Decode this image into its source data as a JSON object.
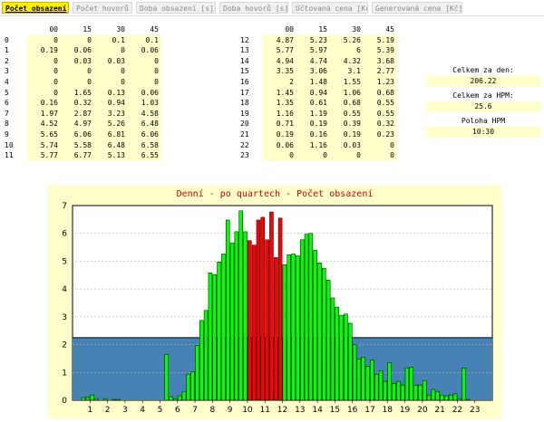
{
  "tabs": [
    {
      "label": "Počet obsazení",
      "active": true
    },
    {
      "label": "Počet hovorů",
      "active": false
    },
    {
      "label": "Doba obsazení [s]",
      "active": false
    },
    {
      "label": "Doba hovorů [s]",
      "active": false
    },
    {
      "label": "Účtovaná cena [Kč]",
      "active": false
    },
    {
      "label": "Generovaná cena [Kč]",
      "active": false
    }
  ],
  "table": {
    "minutes": [
      "00",
      "15",
      "30",
      "45"
    ],
    "left": [
      {
        "hour": "0",
        "v": [
          "0",
          "0",
          "0.1",
          "0.1"
        ]
      },
      {
        "hour": "1",
        "v": [
          "0.19",
          "0.06",
          "0",
          "0.06"
        ]
      },
      {
        "hour": "2",
        "v": [
          "0",
          "0.03",
          "0.03",
          "0"
        ]
      },
      {
        "hour": "3",
        "v": [
          "0",
          "0",
          "0",
          "0"
        ]
      },
      {
        "hour": "4",
        "v": [
          "0",
          "0",
          "0",
          "0"
        ]
      },
      {
        "hour": "5",
        "v": [
          "0",
          "1.65",
          "0.13",
          "0.06"
        ]
      },
      {
        "hour": "6",
        "v": [
          "0.16",
          "0.32",
          "0.94",
          "1.03"
        ]
      },
      {
        "hour": "7",
        "v": [
          "1.97",
          "2.87",
          "3.23",
          "4.58"
        ]
      },
      {
        "hour": "8",
        "v": [
          "4.52",
          "4.97",
          "5.26",
          "6.48"
        ]
      },
      {
        "hour": "9",
        "v": [
          "5.65",
          "6.06",
          "6.81",
          "6.06"
        ]
      },
      {
        "hour": "10",
        "v": [
          "5.74",
          "5.58",
          "6.48",
          "6.58"
        ]
      },
      {
        "hour": "11",
        "v": [
          "5.77",
          "6.77",
          "5.13",
          "6.55"
        ]
      }
    ],
    "right": [
      {
        "hour": "12",
        "v": [
          "4.87",
          "5.23",
          "5.26",
          "5.19"
        ]
      },
      {
        "hour": "13",
        "v": [
          "5.77",
          "5.97",
          "6",
          "5.39"
        ]
      },
      {
        "hour": "14",
        "v": [
          "4.94",
          "4.74",
          "4.32",
          "3.68"
        ]
      },
      {
        "hour": "15",
        "v": [
          "3.35",
          "3.06",
          "3.1",
          "2.77"
        ]
      },
      {
        "hour": "16",
        "v": [
          "2",
          "1.48",
          "1.55",
          "1.23"
        ]
      },
      {
        "hour": "17",
        "v": [
          "1.45",
          "0.94",
          "1.06",
          "0.68"
        ]
      },
      {
        "hour": "18",
        "v": [
          "1.35",
          "0.61",
          "0.68",
          "0.55"
        ]
      },
      {
        "hour": "19",
        "v": [
          "1.16",
          "1.19",
          "0.55",
          "0.55"
        ]
      },
      {
        "hour": "20",
        "v": [
          "0.71",
          "0.19",
          "0.39",
          "0.32"
        ]
      },
      {
        "hour": "21",
        "v": [
          "0.19",
          "0.16",
          "0.19",
          "0.23"
        ]
      },
      {
        "hour": "22",
        "v": [
          "0.06",
          "1.16",
          "0.03",
          "0"
        ]
      },
      {
        "hour": "23",
        "v": [
          "0",
          "0",
          "0",
          "0"
        ]
      }
    ]
  },
  "summary": {
    "day_label": "Celkem za den:",
    "day_value": "206.22",
    "hpm_label": "Celkem za HPM:",
    "hpm_value": "25.6",
    "pos_label": "Poloha HPM",
    "pos_value": "10:30"
  },
  "chart_data": {
    "type": "bar",
    "title": "Denní - po quartech - Počet obsazení",
    "x_ticks": [
      "1",
      "2",
      "3",
      "4",
      "5",
      "6",
      "7",
      "8",
      "9",
      "10",
      "11",
      "12",
      "13",
      "14",
      "15",
      "16",
      "17",
      "18",
      "19",
      "20",
      "21",
      "22",
      "23"
    ],
    "y_ticks": [
      "0",
      "1",
      "2",
      "3",
      "4",
      "5",
      "6",
      "7"
    ],
    "ylim": [
      0,
      7
    ],
    "reference_level": 2.25,
    "highlight_hours": [
      10,
      11
    ],
    "grid": true,
    "colors": {
      "bar": "#00ff00",
      "highlight": "#ff0000",
      "reference": "#4682b4",
      "plot_bg": "#ffffff"
    }
  }
}
